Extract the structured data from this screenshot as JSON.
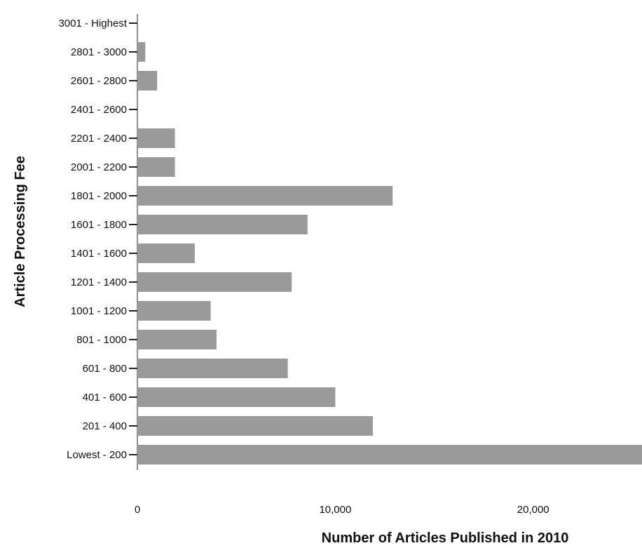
{
  "chart_data": {
    "type": "bar",
    "orientation": "horizontal",
    "categories": [
      "Lowest - 200",
      "201 - 400",
      "401 - 600",
      "601 - 800",
      "801 - 1000",
      "1001 - 1200",
      "1201 - 1400",
      "1401 - 1600",
      "1601 - 1800",
      "1801 - 2000",
      "2001 - 2200",
      "2201 - 2400",
      "2401 - 2600",
      "2601 - 2800",
      "2801 - 3000",
      "3001 - Highest"
    ],
    "values": [
      25500,
      11900,
      10000,
      7600,
      4000,
      3700,
      7800,
      2900,
      8600,
      12900,
      1900,
      1900,
      0,
      1000,
      400,
      0
    ],
    "xlabel": "Number of Articles Published in 2010",
    "ylabel": "Article Processing Fee",
    "xlim": [
      0,
      25500
    ],
    "xticks": [
      0,
      10000,
      20000
    ],
    "xtick_labels": [
      "0",
      "10,000",
      "20,000"
    ],
    "grid": false,
    "bar_color": "#9a9a9a"
  }
}
